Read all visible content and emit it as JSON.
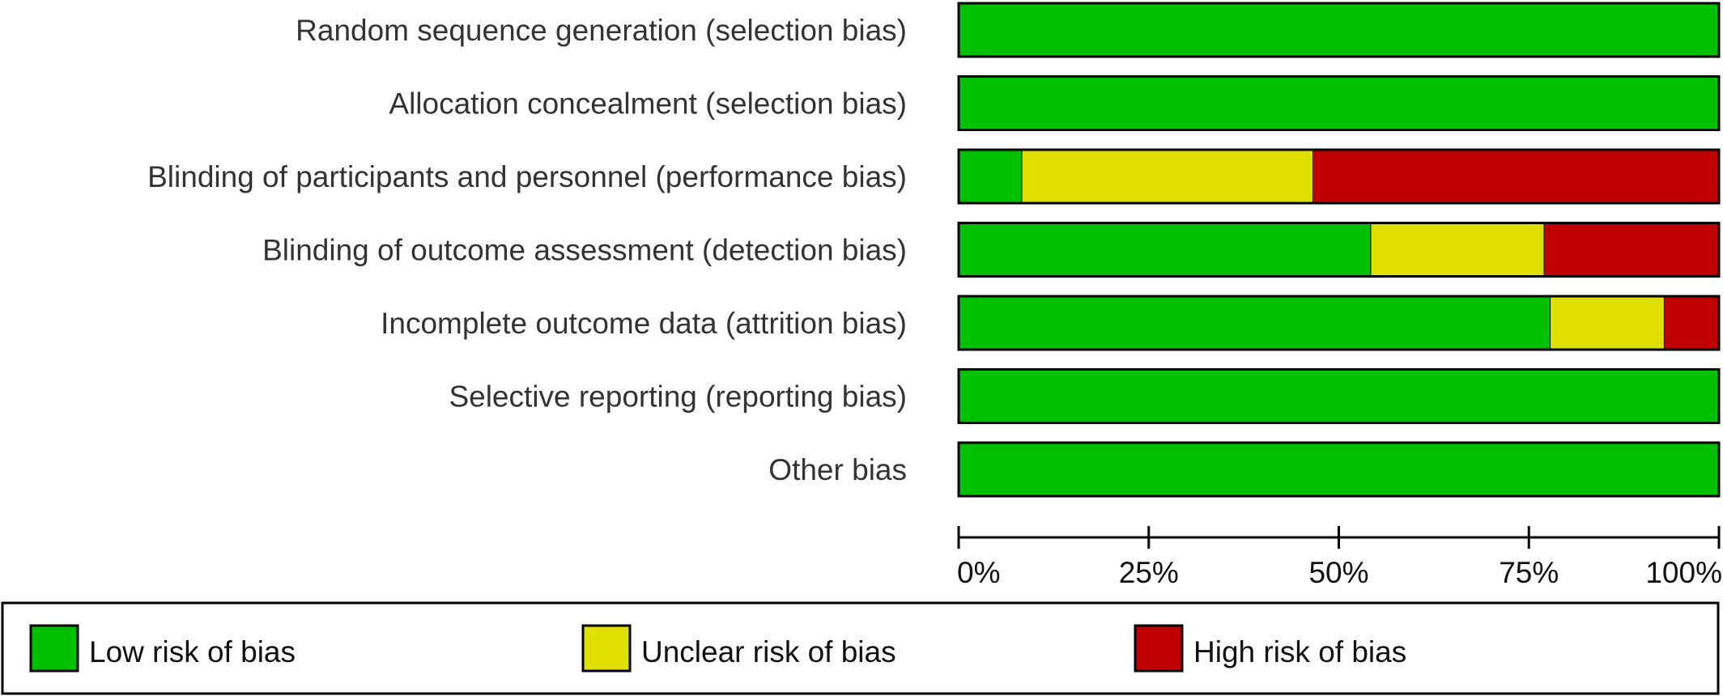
{
  "chart_data": {
    "type": "bar",
    "stacked": true,
    "orientation": "horizontal",
    "categories": [
      "Random sequence generation (selection bias)",
      "Allocation concealment (selection bias)",
      "Blinding of participants and personnel (performance bias)",
      "Blinding of outcome assessment (detection bias)",
      "Incomplete outcome data (attrition bias)",
      "Selective reporting (reporting bias)",
      "Other bias"
    ],
    "series": [
      {
        "name": "Low risk of bias",
        "color": "#00c000",
        "values": [
          100,
          100,
          8.3,
          54.2,
          77.8,
          100,
          100
        ]
      },
      {
        "name": "Unclear risk of bias",
        "color": "#e0e000",
        "values": [
          0,
          0,
          38.3,
          22.8,
          15.0,
          0,
          0
        ]
      },
      {
        "name": "High risk of bias",
        "color": "#c00000",
        "values": [
          0,
          0,
          53.4,
          23.0,
          7.2,
          0,
          0
        ]
      }
    ],
    "xlim": [
      0,
      100
    ],
    "xticks": [
      "0%",
      "25%",
      "50%",
      "75%",
      "100%"
    ],
    "xlabel": "",
    "ylabel": "",
    "title": "",
    "legend_position": "bottom",
    "grid": false
  }
}
